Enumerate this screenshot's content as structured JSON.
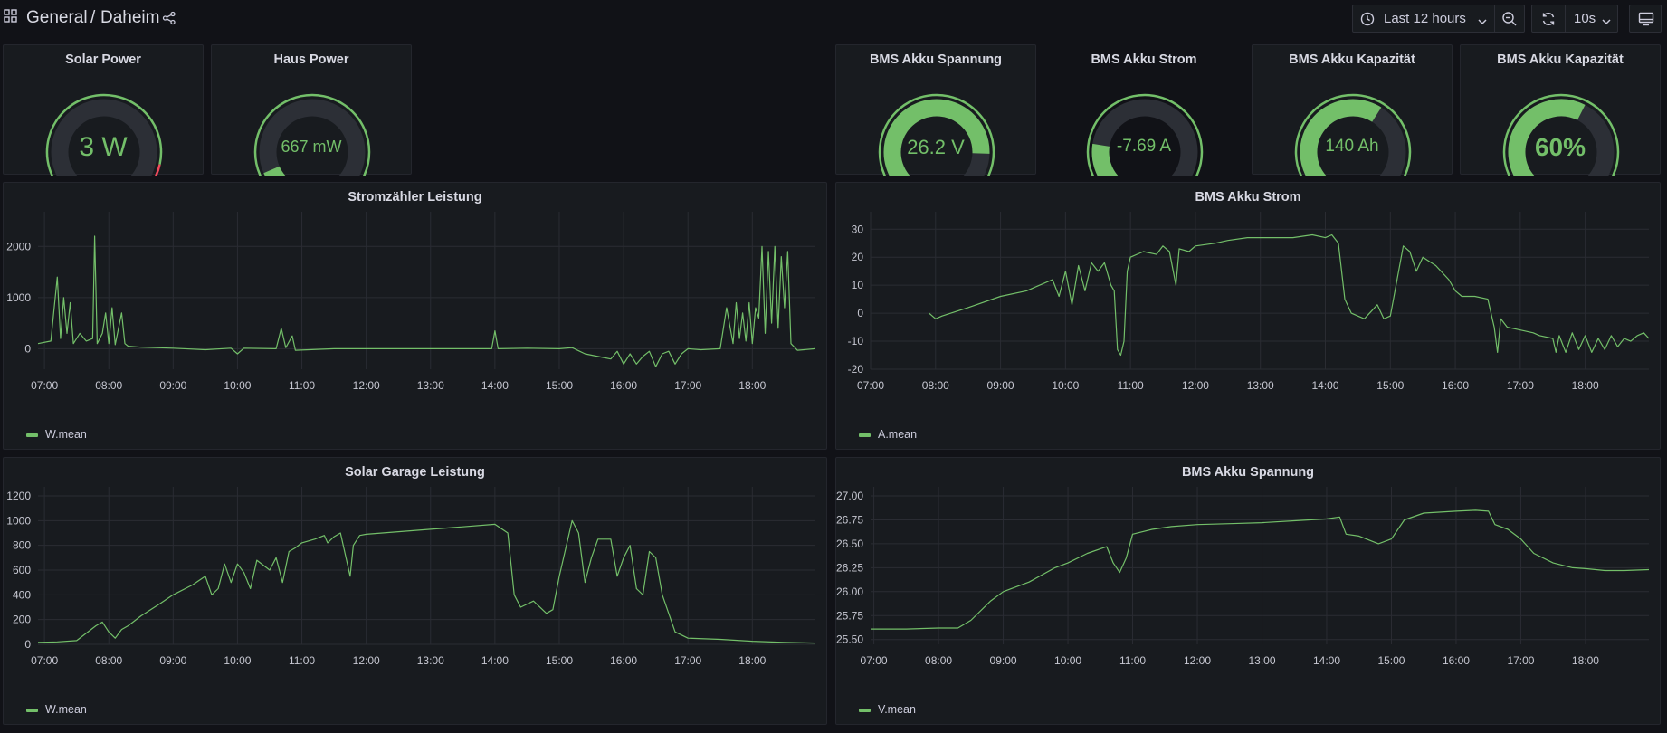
{
  "header": {
    "folder": "General",
    "separator": "/",
    "dashboard": "Daheim",
    "time_range": "Last 12 hours",
    "refresh": "10s"
  },
  "icons": {
    "apps": "apps-grid-icon",
    "share": "share-icon",
    "clock": "clock-icon",
    "chevron": "chevron-down-icon",
    "zoom_out": "zoom-out-icon",
    "refresh": "refresh-icon",
    "tv": "tv-mode-icon"
  },
  "colors": {
    "series": "#73bf69",
    "threshold_red": "#f2495c",
    "track": "#2c2f36"
  },
  "gauges": [
    {
      "id": "solar-power",
      "title": "Solar Power",
      "value": "3 W",
      "fraction": 0.01,
      "red_from": 0.88
    },
    {
      "id": "haus-power",
      "title": "Haus Power",
      "value": "667 mW",
      "fraction": 0.08,
      "red_from": null
    },
    {
      "id": "bms-akku-spannung",
      "title": "BMS Akku Spannung",
      "value": "26.2 V",
      "fraction": 0.84,
      "red_from": null
    },
    {
      "id": "bms-akku-strom",
      "title": "BMS Akku Strom",
      "value": "-7.69 A",
      "fraction": 0.2,
      "red_from": null
    },
    {
      "id": "bms-akku-kapazitaet-ah",
      "title": "BMS Akku Kapazität",
      "value": "140 Ah",
      "fraction": 0.62,
      "red_from": 0.96
    },
    {
      "id": "bms-akku-kapazitaet-pct",
      "title": "BMS Akku Kapazität",
      "value": "60%",
      "fraction": 0.6,
      "red_from": null
    }
  ],
  "chart_data": [
    {
      "type": "line",
      "title": "Stromzähler Leistung",
      "legend": "W.mean",
      "x_ticks": [
        "07:00",
        "08:00",
        "09:00",
        "10:00",
        "11:00",
        "12:00",
        "13:00",
        "14:00",
        "15:00",
        "16:00",
        "17:00",
        "18:00"
      ],
      "x_range": [
        6.9,
        18.98
      ],
      "y_ticks": [
        0,
        1000,
        2000
      ],
      "y_range": [
        -400,
        2500
      ],
      "points": [
        [
          6.9,
          100
        ],
        [
          7.1,
          150
        ],
        [
          7.2,
          1400
        ],
        [
          7.25,
          200
        ],
        [
          7.3,
          1000
        ],
        [
          7.35,
          300
        ],
        [
          7.4,
          900
        ],
        [
          7.45,
          100
        ],
        [
          7.55,
          300
        ],
        [
          7.65,
          150
        ],
        [
          7.75,
          200
        ],
        [
          7.78,
          2200
        ],
        [
          7.82,
          100
        ],
        [
          7.9,
          300
        ],
        [
          7.95,
          700
        ],
        [
          8.0,
          100
        ],
        [
          8.05,
          800
        ],
        [
          8.1,
          80
        ],
        [
          8.2,
          700
        ],
        [
          8.25,
          100
        ],
        [
          8.3,
          50
        ],
        [
          8.5,
          30
        ],
        [
          9.0,
          10
        ],
        [
          9.5,
          -20
        ],
        [
          9.9,
          10
        ],
        [
          10.0,
          -100
        ],
        [
          10.1,
          10
        ],
        [
          10.6,
          0
        ],
        [
          10.68,
          400
        ],
        [
          10.75,
          20
        ],
        [
          10.85,
          250
        ],
        [
          10.9,
          -30
        ],
        [
          11.5,
          0
        ],
        [
          12.5,
          0
        ],
        [
          13.5,
          0
        ],
        [
          13.95,
          0
        ],
        [
          14.0,
          350
        ],
        [
          14.05,
          0
        ],
        [
          14.5,
          10
        ],
        [
          15.0,
          0
        ],
        [
          15.2,
          20
        ],
        [
          15.4,
          -100
        ],
        [
          15.6,
          -150
        ],
        [
          15.8,
          -200
        ],
        [
          15.9,
          -50
        ],
        [
          16.0,
          -300
        ],
        [
          16.1,
          -100
        ],
        [
          16.2,
          -300
        ],
        [
          16.3,
          -150
        ],
        [
          16.4,
          -50
        ],
        [
          16.5,
          -350
        ],
        [
          16.6,
          -100
        ],
        [
          16.7,
          -50
        ],
        [
          16.8,
          -300
        ],
        [
          16.9,
          -100
        ],
        [
          17.0,
          0
        ],
        [
          17.2,
          -20
        ],
        [
          17.5,
          0
        ],
        [
          17.6,
          800
        ],
        [
          17.7,
          100
        ],
        [
          17.75,
          900
        ],
        [
          17.8,
          200
        ],
        [
          17.85,
          700
        ],
        [
          17.9,
          150
        ],
        [
          17.95,
          900
        ],
        [
          18.0,
          100
        ],
        [
          18.05,
          800
        ],
        [
          18.1,
          600
        ],
        [
          18.15,
          2000
        ],
        [
          18.2,
          300
        ],
        [
          18.25,
          1900
        ],
        [
          18.3,
          500
        ],
        [
          18.35,
          2000
        ],
        [
          18.4,
          400
        ],
        [
          18.45,
          1800
        ],
        [
          18.5,
          800
        ],
        [
          18.55,
          1900
        ],
        [
          18.6,
          100
        ],
        [
          18.7,
          -30
        ],
        [
          18.98,
          0
        ]
      ]
    },
    {
      "type": "line",
      "title": "BMS Akku Strom",
      "legend": "A.mean",
      "x_ticks": [
        "07:00",
        "08:00",
        "09:00",
        "10:00",
        "11:00",
        "12:00",
        "13:00",
        "14:00",
        "15:00",
        "16:00",
        "17:00",
        "18:00"
      ],
      "x_range": [
        7.0,
        18.98
      ],
      "y_ticks": [
        -20,
        -10,
        0,
        10,
        20,
        30
      ],
      "y_range": [
        -20,
        33
      ],
      "points": [
        [
          7.9,
          0
        ],
        [
          8.0,
          -2
        ],
        [
          8.1,
          -1
        ],
        [
          8.5,
          2
        ],
        [
          9.0,
          6
        ],
        [
          9.4,
          8
        ],
        [
          9.6,
          10
        ],
        [
          9.8,
          12
        ],
        [
          9.9,
          6
        ],
        [
          10.0,
          15
        ],
        [
          10.1,
          3
        ],
        [
          10.2,
          17
        ],
        [
          10.3,
          8
        ],
        [
          10.4,
          18
        ],
        [
          10.5,
          15
        ],
        [
          10.6,
          18
        ],
        [
          10.7,
          10
        ],
        [
          10.75,
          8
        ],
        [
          10.8,
          -13
        ],
        [
          10.85,
          -15
        ],
        [
          10.9,
          -10
        ],
        [
          10.95,
          15
        ],
        [
          11.0,
          20
        ],
        [
          11.2,
          22
        ],
        [
          11.4,
          21
        ],
        [
          11.5,
          24
        ],
        [
          11.6,
          22
        ],
        [
          11.7,
          10
        ],
        [
          11.75,
          23
        ],
        [
          11.9,
          22
        ],
        [
          12.0,
          24
        ],
        [
          12.3,
          25
        ],
        [
          12.5,
          26
        ],
        [
          12.8,
          27
        ],
        [
          13.2,
          27
        ],
        [
          13.5,
          27
        ],
        [
          13.8,
          28
        ],
        [
          14.0,
          27
        ],
        [
          14.1,
          28
        ],
        [
          14.2,
          25
        ],
        [
          14.3,
          5
        ],
        [
          14.4,
          0
        ],
        [
          14.6,
          -2
        ],
        [
          14.8,
          3
        ],
        [
          14.9,
          -2
        ],
        [
          15.0,
          -1
        ],
        [
          15.2,
          24
        ],
        [
          15.3,
          22
        ],
        [
          15.4,
          15
        ],
        [
          15.5,
          20
        ],
        [
          15.7,
          17
        ],
        [
          15.9,
          12
        ],
        [
          16.0,
          8
        ],
        [
          16.1,
          6
        ],
        [
          16.3,
          6
        ],
        [
          16.5,
          5
        ],
        [
          16.6,
          -5
        ],
        [
          16.65,
          -14
        ],
        [
          16.7,
          -2
        ],
        [
          16.8,
          -5
        ],
        [
          17.0,
          -6
        ],
        [
          17.2,
          -7
        ],
        [
          17.3,
          -8
        ],
        [
          17.5,
          -9
        ],
        [
          17.55,
          -14
        ],
        [
          17.6,
          -8
        ],
        [
          17.7,
          -14
        ],
        [
          17.8,
          -7
        ],
        [
          17.9,
          -13
        ],
        [
          18.0,
          -8
        ],
        [
          18.1,
          -14
        ],
        [
          18.2,
          -9
        ],
        [
          18.3,
          -13
        ],
        [
          18.4,
          -8
        ],
        [
          18.5,
          -12
        ],
        [
          18.6,
          -9
        ],
        [
          18.7,
          -10
        ],
        [
          18.8,
          -8
        ],
        [
          18.9,
          -7
        ],
        [
          18.98,
          -9
        ]
      ]
    },
    {
      "type": "line",
      "title": "Solar Garage Leistung",
      "legend": "W.mean",
      "x_ticks": [
        "07:00",
        "08:00",
        "09:00",
        "10:00",
        "11:00",
        "12:00",
        "13:00",
        "14:00",
        "15:00",
        "16:00",
        "17:00",
        "18:00"
      ],
      "x_range": [
        6.9,
        18.98
      ],
      "y_ticks": [
        0,
        200,
        400,
        600,
        800,
        1000,
        1200
      ],
      "y_range": [
        0,
        1200
      ],
      "points": [
        [
          6.9,
          15
        ],
        [
          7.2,
          20
        ],
        [
          7.5,
          30
        ],
        [
          7.8,
          150
        ],
        [
          7.9,
          180
        ],
        [
          8.0,
          100
        ],
        [
          8.1,
          50
        ],
        [
          8.2,
          120
        ],
        [
          8.3,
          150
        ],
        [
          8.5,
          230
        ],
        [
          8.8,
          330
        ],
        [
          9.0,
          400
        ],
        [
          9.3,
          480
        ],
        [
          9.5,
          550
        ],
        [
          9.6,
          400
        ],
        [
          9.7,
          450
        ],
        [
          9.8,
          650
        ],
        [
          9.9,
          500
        ],
        [
          10.0,
          650
        ],
        [
          10.1,
          580
        ],
        [
          10.2,
          450
        ],
        [
          10.3,
          680
        ],
        [
          10.5,
          600
        ],
        [
          10.6,
          700
        ],
        [
          10.7,
          500
        ],
        [
          10.8,
          750
        ],
        [
          10.9,
          780
        ],
        [
          11.0,
          820
        ],
        [
          11.2,
          850
        ],
        [
          11.35,
          880
        ],
        [
          11.4,
          820
        ],
        [
          11.5,
          870
        ],
        [
          11.6,
          900
        ],
        [
          11.75,
          550
        ],
        [
          11.8,
          800
        ],
        [
          11.9,
          880
        ],
        [
          12.0,
          890
        ],
        [
          12.5,
          910
        ],
        [
          13.0,
          930
        ],
        [
          13.5,
          950
        ],
        [
          14.0,
          970
        ],
        [
          14.2,
          900
        ],
        [
          14.3,
          400
        ],
        [
          14.4,
          300
        ],
        [
          14.6,
          350
        ],
        [
          14.8,
          250
        ],
        [
          14.9,
          280
        ],
        [
          15.0,
          550
        ],
        [
          15.2,
          1000
        ],
        [
          15.3,
          900
        ],
        [
          15.4,
          500
        ],
        [
          15.5,
          700
        ],
        [
          15.6,
          850
        ],
        [
          15.8,
          850
        ],
        [
          15.9,
          550
        ],
        [
          16.0,
          700
        ],
        [
          16.1,
          800
        ],
        [
          16.2,
          450
        ],
        [
          16.3,
          400
        ],
        [
          16.4,
          750
        ],
        [
          16.5,
          700
        ],
        [
          16.6,
          400
        ],
        [
          16.7,
          250
        ],
        [
          16.8,
          100
        ],
        [
          17.0,
          50
        ],
        [
          17.5,
          40
        ],
        [
          18.0,
          25
        ],
        [
          18.5,
          15
        ],
        [
          18.98,
          10
        ]
      ]
    },
    {
      "type": "line",
      "title": "BMS Akku Spannung",
      "legend": "V.mean",
      "x_ticks": [
        "07:00",
        "08:00",
        "09:00",
        "10:00",
        "11:00",
        "12:00",
        "13:00",
        "14:00",
        "15:00",
        "16:00",
        "17:00",
        "18:00"
      ],
      "x_range": [
        6.95,
        18.98
      ],
      "y_ticks": [
        "25.50",
        "25.75",
        "26.00",
        "26.25",
        "26.50",
        "26.75",
        "27.00"
      ],
      "y_range": [
        25.45,
        27.0
      ],
      "points": [
        [
          6.95,
          25.61
        ],
        [
          7.5,
          25.61
        ],
        [
          8.0,
          25.62
        ],
        [
          8.3,
          25.62
        ],
        [
          8.5,
          25.7
        ],
        [
          8.8,
          25.9
        ],
        [
          9.0,
          26.0
        ],
        [
          9.4,
          26.1
        ],
        [
          9.8,
          26.25
        ],
        [
          10.0,
          26.3
        ],
        [
          10.3,
          26.4
        ],
        [
          10.6,
          26.47
        ],
        [
          10.7,
          26.3
        ],
        [
          10.8,
          26.2
        ],
        [
          10.9,
          26.35
        ],
        [
          11.0,
          26.6
        ],
        [
          11.3,
          26.65
        ],
        [
          11.6,
          26.68
        ],
        [
          12.0,
          26.7
        ],
        [
          12.5,
          26.71
        ],
        [
          13.0,
          26.72
        ],
        [
          13.5,
          26.74
        ],
        [
          14.0,
          26.76
        ],
        [
          14.2,
          26.78
        ],
        [
          14.3,
          26.6
        ],
        [
          14.5,
          26.58
        ],
        [
          14.8,
          26.5
        ],
        [
          15.0,
          26.55
        ],
        [
          15.2,
          26.75
        ],
        [
          15.5,
          26.82
        ],
        [
          16.0,
          26.84
        ],
        [
          16.3,
          26.85
        ],
        [
          16.5,
          26.84
        ],
        [
          16.6,
          26.7
        ],
        [
          16.8,
          26.65
        ],
        [
          17.0,
          26.55
        ],
        [
          17.2,
          26.4
        ],
        [
          17.5,
          26.3
        ],
        [
          17.8,
          26.25
        ],
        [
          18.0,
          26.24
        ],
        [
          18.3,
          26.22
        ],
        [
          18.6,
          26.22
        ],
        [
          18.98,
          26.23
        ]
      ]
    }
  ]
}
